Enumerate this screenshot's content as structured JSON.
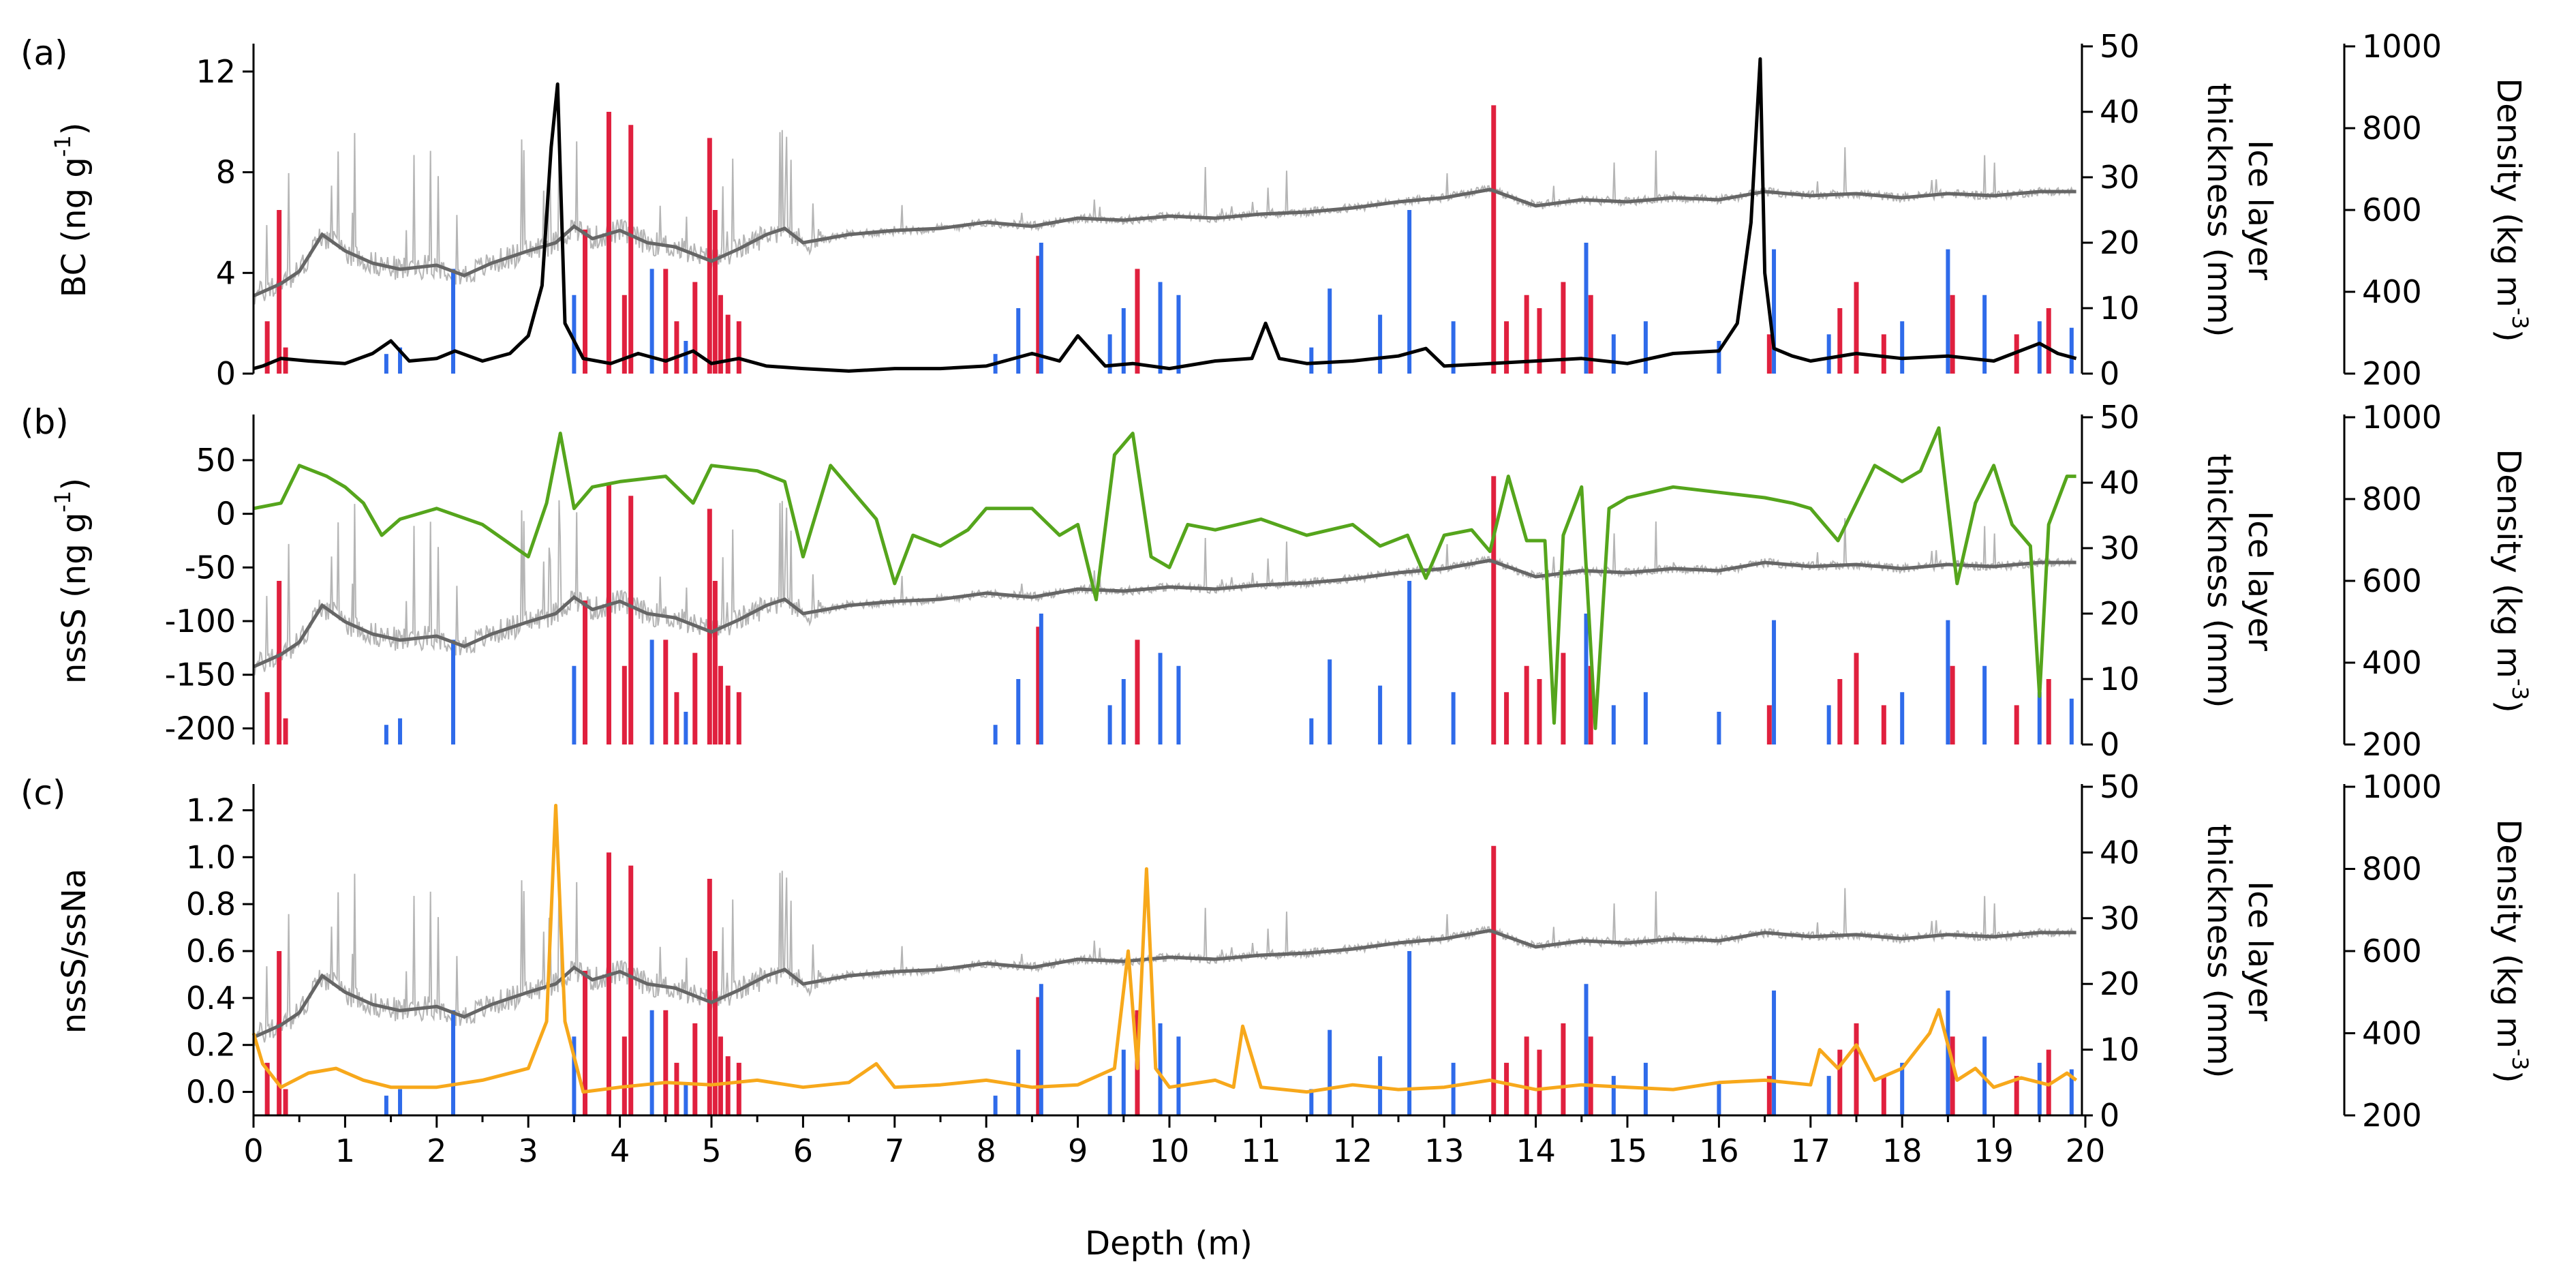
{
  "chart_data": {
    "type": "line",
    "xlabel": "Depth (m)",
    "xlim": [
      0,
      20
    ],
    "xticks": [
      0,
      1,
      2,
      3,
      4,
      5,
      6,
      7,
      8,
      9,
      10,
      11,
      12,
      13,
      14,
      15,
      16,
      17,
      18,
      19,
      20
    ],
    "right_axis_1": {
      "title_line1": "Ice layer",
      "title_line2": "thickness (mm)",
      "range": [
        0,
        50
      ],
      "ticks": [
        0,
        10,
        20,
        30,
        40,
        50
      ]
    },
    "right_axis_2": {
      "title_main": "Density (kg m",
      "title_sup": "-3",
      "title_close": ")",
      "range": [
        200,
        1000
      ],
      "ticks": [
        200,
        400,
        600,
        800,
        1000
      ]
    },
    "colors": {
      "ice_red": "#e0203e",
      "ice_blue": "#2f6bea",
      "density_raw": "#b5b5b5",
      "density_smooth": "#666666",
      "bc": "#000000",
      "nsss": "#55a51c",
      "ratio": "#f7a81b"
    },
    "density_smooth": {
      "x": [
        0,
        0.3,
        0.5,
        0.75,
        1.0,
        1.3,
        1.6,
        2.0,
        2.3,
        2.6,
        3.0,
        3.3,
        3.5,
        3.7,
        4.0,
        4.3,
        4.6,
        5.0,
        5.3,
        5.6,
        5.8,
        6.0,
        6.5,
        7.0,
        7.5,
        8.0,
        8.5,
        9.0,
        9.5,
        10.0,
        10.5,
        11.0,
        11.5,
        12.0,
        12.5,
        13.0,
        13.5,
        14.0,
        14.5,
        15.0,
        15.5,
        16.0,
        16.5,
        17.0,
        17.5,
        18.0,
        18.5,
        19.0,
        19.5,
        19.9
      ],
      "y": [
        390,
        420,
        450,
        540,
        500,
        470,
        455,
        465,
        440,
        470,
        500,
        520,
        560,
        530,
        550,
        520,
        510,
        475,
        505,
        540,
        555,
        520,
        540,
        550,
        555,
        570,
        560,
        580,
        575,
        585,
        580,
        590,
        595,
        605,
        620,
        630,
        650,
        610,
        625,
        620,
        630,
        625,
        645,
        635,
        640,
        630,
        640,
        635,
        645,
        645
      ]
    },
    "ice_red_bars": [
      {
        "x": 0.15,
        "v": 8
      },
      {
        "x": 0.28,
        "v": 25
      },
      {
        "x": 0.35,
        "v": 4
      },
      {
        "x": 3.62,
        "v": 22
      },
      {
        "x": 3.88,
        "v": 40
      },
      {
        "x": 4.05,
        "v": 12
      },
      {
        "x": 4.12,
        "v": 38
      },
      {
        "x": 4.5,
        "v": 16
      },
      {
        "x": 4.62,
        "v": 8
      },
      {
        "x": 4.82,
        "v": 14
      },
      {
        "x": 4.98,
        "v": 36
      },
      {
        "x": 5.04,
        "v": 25
      },
      {
        "x": 5.1,
        "v": 12
      },
      {
        "x": 5.18,
        "v": 9
      },
      {
        "x": 5.3,
        "v": 8
      },
      {
        "x": 8.57,
        "v": 18
      },
      {
        "x": 9.65,
        "v": 16
      },
      {
        "x": 13.54,
        "v": 41
      },
      {
        "x": 13.68,
        "v": 8
      },
      {
        "x": 13.9,
        "v": 12
      },
      {
        "x": 14.04,
        "v": 10
      },
      {
        "x": 14.3,
        "v": 14
      },
      {
        "x": 14.6,
        "v": 12
      },
      {
        "x": 16.55,
        "v": 6
      },
      {
        "x": 17.32,
        "v": 10
      },
      {
        "x": 17.5,
        "v": 14
      },
      {
        "x": 17.8,
        "v": 6
      },
      {
        "x": 18.55,
        "v": 12
      },
      {
        "x": 19.25,
        "v": 6
      },
      {
        "x": 19.6,
        "v": 10
      }
    ],
    "ice_blue_bars": [
      {
        "x": 1.45,
        "v": 3
      },
      {
        "x": 1.6,
        "v": 4
      },
      {
        "x": 2.18,
        "v": 16
      },
      {
        "x": 3.5,
        "v": 12
      },
      {
        "x": 4.35,
        "v": 16
      },
      {
        "x": 4.72,
        "v": 5
      },
      {
        "x": 8.1,
        "v": 3
      },
      {
        "x": 8.35,
        "v": 10
      },
      {
        "x": 8.6,
        "v": 20
      },
      {
        "x": 9.35,
        "v": 6
      },
      {
        "x": 9.5,
        "v": 10
      },
      {
        "x": 9.9,
        "v": 14
      },
      {
        "x": 10.1,
        "v": 12
      },
      {
        "x": 11.55,
        "v": 4
      },
      {
        "x": 11.75,
        "v": 13
      },
      {
        "x": 12.3,
        "v": 9
      },
      {
        "x": 12.62,
        "v": 25
      },
      {
        "x": 13.1,
        "v": 8
      },
      {
        "x": 14.55,
        "v": 20
      },
      {
        "x": 14.85,
        "v": 6
      },
      {
        "x": 15.2,
        "v": 8
      },
      {
        "x": 16.0,
        "v": 5
      },
      {
        "x": 16.6,
        "v": 19
      },
      {
        "x": 17.2,
        "v": 6
      },
      {
        "x": 18.0,
        "v": 8
      },
      {
        "x": 18.5,
        "v": 19
      },
      {
        "x": 18.9,
        "v": 12
      },
      {
        "x": 19.5,
        "v": 8
      },
      {
        "x": 19.85,
        "v": 7
      }
    ],
    "panels": [
      {
        "label": "(a)",
        "ylabel": "BC (ng g",
        "ylabel_sup": "-1",
        "ylabel_close": ")",
        "ylim": [
          0,
          13
        ],
        "yticks": [
          0,
          4,
          8,
          12
        ],
        "series": {
          "name": "BC",
          "x": [
            0,
            0.1,
            0.3,
            0.6,
            1.0,
            1.3,
            1.5,
            1.7,
            2.0,
            2.2,
            2.5,
            2.8,
            3.0,
            3.15,
            3.25,
            3.32,
            3.4,
            3.6,
            3.9,
            4.2,
            4.5,
            4.8,
            5.0,
            5.3,
            5.6,
            6.0,
            6.5,
            7.0,
            7.5,
            8.0,
            8.5,
            8.8,
            9.0,
            9.3,
            9.6,
            10.0,
            10.5,
            10.9,
            11.05,
            11.2,
            11.5,
            12.0,
            12.5,
            12.8,
            13.0,
            13.5,
            14.0,
            14.5,
            15.0,
            15.5,
            16.0,
            16.2,
            16.35,
            16.45,
            16.5,
            16.6,
            16.8,
            17.0,
            17.5,
            18.0,
            18.5,
            19.0,
            19.5,
            19.7,
            19.9
          ],
          "y": [
            0.2,
            0.3,
            0.6,
            0.5,
            0.4,
            0.8,
            1.3,
            0.5,
            0.6,
            0.9,
            0.5,
            0.8,
            1.5,
            3.5,
            9.0,
            11.5,
            2.0,
            0.6,
            0.4,
            0.8,
            0.5,
            0.9,
            0.4,
            0.6,
            0.3,
            0.2,
            0.1,
            0.2,
            0.2,
            0.3,
            0.8,
            0.5,
            1.5,
            0.3,
            0.4,
            0.2,
            0.5,
            0.6,
            2.0,
            0.6,
            0.4,
            0.5,
            0.7,
            1.0,
            0.3,
            0.4,
            0.5,
            0.6,
            0.4,
            0.8,
            0.9,
            2.0,
            6.0,
            12.5,
            4.0,
            1.0,
            0.7,
            0.5,
            0.8,
            0.6,
            0.7,
            0.5,
            1.2,
            0.8,
            0.6
          ]
        }
      },
      {
        "label": "(b)",
        "ylabel": "nssS (ng g",
        "ylabel_sup": "-1",
        "ylabel_close": ")",
        "ylim": [
          -215,
          90
        ],
        "yticks": [
          -200,
          -150,
          -100,
          -50,
          0,
          50
        ],
        "series": {
          "name": "nssS",
          "x": [
            0,
            0.3,
            0.5,
            0.8,
            1.0,
            1.2,
            1.4,
            1.6,
            2.0,
            2.5,
            3.0,
            3.2,
            3.35,
            3.5,
            3.7,
            4.0,
            4.5,
            4.8,
            5.0,
            5.5,
            5.8,
            6.0,
            6.3,
            6.8,
            7.0,
            7.2,
            7.5,
            7.8,
            8.0,
            8.5,
            8.8,
            9.0,
            9.2,
            9.4,
            9.6,
            9.8,
            10.0,
            10.2,
            10.5,
            11.0,
            11.5,
            12.0,
            12.3,
            12.6,
            12.8,
            13.0,
            13.3,
            13.5,
            13.7,
            13.9,
            14.1,
            14.2,
            14.3,
            14.5,
            14.65,
            14.8,
            15.0,
            15.5,
            16.0,
            16.5,
            16.8,
            17.0,
            17.3,
            17.7,
            18.0,
            18.2,
            18.4,
            18.6,
            18.8,
            19.0,
            19.2,
            19.4,
            19.5,
            19.6,
            19.8,
            19.9
          ],
          "y": [
            5,
            10,
            45,
            35,
            25,
            10,
            -20,
            -5,
            5,
            -10,
            -40,
            10,
            75,
            5,
            25,
            30,
            35,
            10,
            45,
            40,
            30,
            -40,
            45,
            -5,
            -65,
            -20,
            -30,
            -15,
            5,
            5,
            -20,
            -10,
            -80,
            55,
            75,
            -40,
            -50,
            -10,
            -15,
            -5,
            -20,
            -10,
            -30,
            -20,
            -60,
            -20,
            -15,
            -35,
            35,
            -25,
            -25,
            -195,
            -20,
            25,
            -200,
            5,
            15,
            25,
            20,
            15,
            10,
            5,
            -25,
            45,
            30,
            40,
            80,
            -65,
            10,
            45,
            -10,
            -30,
            -170,
            -10,
            35,
            35
          ]
        }
      },
      {
        "label": "(c)",
        "ylabel": "nssS/ssNa",
        "ylabel_sup": "",
        "ylabel_close": "",
        "ylim": [
          -0.1,
          1.3
        ],
        "yticks": [
          0.0,
          0.2,
          0.4,
          0.6,
          0.8,
          1.0,
          1.2
        ],
        "series": {
          "name": "nssS/ssNa",
          "x": [
            0,
            0.1,
            0.3,
            0.6,
            0.9,
            1.2,
            1.5,
            2.0,
            2.5,
            3.0,
            3.2,
            3.3,
            3.4,
            3.6,
            4.0,
            4.5,
            5.0,
            5.5,
            6.0,
            6.5,
            6.8,
            7.0,
            7.5,
            8.0,
            8.5,
            9.0,
            9.4,
            9.55,
            9.65,
            9.75,
            9.85,
            10.0,
            10.5,
            10.7,
            10.8,
            11.0,
            11.5,
            12.0,
            12.5,
            13.0,
            13.5,
            14.0,
            14.5,
            15.0,
            15.5,
            16.0,
            16.5,
            17.0,
            17.1,
            17.3,
            17.5,
            17.7,
            18.0,
            18.3,
            18.4,
            18.6,
            18.8,
            19.0,
            19.3,
            19.6,
            19.8,
            19.9
          ],
          "y": [
            0.25,
            0.12,
            0.02,
            0.08,
            0.1,
            0.05,
            0.02,
            0.02,
            0.05,
            0.1,
            0.3,
            1.22,
            0.3,
            0.0,
            0.02,
            0.04,
            0.03,
            0.05,
            0.02,
            0.04,
            0.12,
            0.02,
            0.03,
            0.05,
            0.02,
            0.03,
            0.1,
            0.6,
            0.1,
            0.95,
            0.1,
            0.02,
            0.05,
            0.02,
            0.28,
            0.02,
            0.0,
            0.03,
            0.01,
            0.02,
            0.05,
            0.01,
            0.03,
            0.02,
            0.01,
            0.04,
            0.05,
            0.03,
            0.18,
            0.1,
            0.2,
            0.05,
            0.1,
            0.25,
            0.35,
            0.05,
            0.1,
            0.02,
            0.06,
            0.03,
            0.08,
            0.05
          ]
        }
      }
    ]
  }
}
